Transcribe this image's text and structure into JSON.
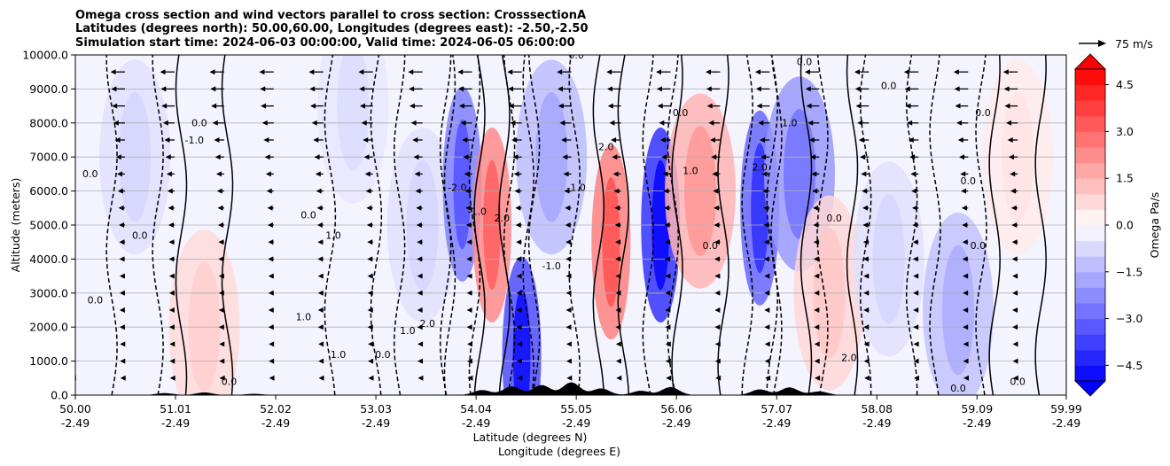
{
  "chart_data": {
    "type": "heatmap",
    "title_lines": [
      "Omega cross section and wind vectors parallel to cross section: CrosssectionA",
      "Latitudes (degrees north): 50.00,60.00, Longitudes (degrees east): -2.50,-2.50",
      "Simulation start time: 2024-06-03 00:00:00, Valid time: 2024-06-05 06:00:00"
    ],
    "xlabel_lat": "Latitude (degrees N)",
    "xlabel_lon": "Longitude (degrees E)",
    "ylabel": "Altitude (meters)",
    "x_ticks": [
      {
        "lat": "50.00",
        "lon": "-2.49",
        "value": 50.0
      },
      {
        "lat": "51.01",
        "lon": "-2.49",
        "value": 51.01
      },
      {
        "lat": "52.02",
        "lon": "-2.49",
        "value": 52.02
      },
      {
        "lat": "53.03",
        "lon": "-2.49",
        "value": 53.03
      },
      {
        "lat": "54.04",
        "lon": "-2.49",
        "value": 54.04
      },
      {
        "lat": "55.05",
        "lon": "-2.49",
        "value": 55.05
      },
      {
        "lat": "56.06",
        "lon": "-2.49",
        "value": 56.06
      },
      {
        "lat": "57.07",
        "lon": "-2.49",
        "value": 57.07
      },
      {
        "lat": "58.08",
        "lon": "-2.49",
        "value": 58.08
      },
      {
        "lat": "59.09",
        "lon": "-2.49",
        "value": 59.09
      },
      {
        "lat": "59.99",
        "lon": "-2.49",
        "value": 59.99
      }
    ],
    "xlim": [
      50.0,
      59.99
    ],
    "y_ticks": [
      {
        "label": "0.0",
        "value": 0
      },
      {
        "label": "1000.0",
        "value": 1000
      },
      {
        "label": "2000.0",
        "value": 2000
      },
      {
        "label": "3000.0",
        "value": 3000
      },
      {
        "label": "4000.0",
        "value": 4000
      },
      {
        "label": "5000.0",
        "value": 5000
      },
      {
        "label": "6000.0",
        "value": 6000
      },
      {
        "label": "7000.0",
        "value": 7000
      },
      {
        "label": "8000.0",
        "value": 8000
      },
      {
        "label": "9000.0",
        "value": 9000
      },
      {
        "label": "10000.0",
        "value": 10000
      }
    ],
    "ylim": [
      0,
      10000
    ],
    "grid": "horizontal",
    "colorbar": {
      "label": "Omega Pa/s",
      "range": [
        -5.0,
        5.0
      ],
      "levels": [
        -5.0,
        -4.5,
        -4.0,
        -3.5,
        -3.0,
        -2.5,
        -2.0,
        -1.5,
        -1.0,
        -0.5,
        0.0,
        0.5,
        1.0,
        1.5,
        2.0,
        2.5,
        3.0,
        3.5,
        4.0,
        4.5,
        5.0
      ],
      "tick_labels": [
        "4.5",
        "3.0",
        "1.5",
        "0.0",
        "−1.5",
        "−3.0",
        "−4.5"
      ],
      "tick_values": [
        4.5,
        3.0,
        1.5,
        0.0,
        -1.5,
        -3.0,
        -4.5
      ],
      "colormap": "bwr",
      "extend": "both"
    },
    "wind_key": {
      "label": "75 m/s",
      "speed": 75
    },
    "wind_rows": [
      {
        "alt": 9500,
        "speed": 30
      },
      {
        "alt": 9000,
        "speed": 28
      },
      {
        "alt": 8500,
        "speed": 26
      },
      {
        "alt": 8000,
        "speed": 22
      },
      {
        "alt": 7500,
        "speed": 18
      },
      {
        "alt": 7000,
        "speed": 15
      },
      {
        "alt": 6500,
        "speed": 12
      },
      {
        "alt": 6000,
        "speed": 10
      },
      {
        "alt": 5500,
        "speed": 8
      },
      {
        "alt": 5000,
        "speed": 7
      },
      {
        "alt": 4500,
        "speed": 6
      },
      {
        "alt": 4000,
        "speed": 6
      },
      {
        "alt": 3500,
        "speed": 5
      },
      {
        "alt": 3000,
        "speed": 5
      },
      {
        "alt": 2500,
        "speed": 5
      },
      {
        "alt": 2000,
        "speed": 5
      },
      {
        "alt": 1500,
        "speed": 4
      },
      {
        "alt": 1000,
        "speed": 4
      },
      {
        "alt": 500,
        "speed": 3
      }
    ],
    "omega_cells": [
      {
        "lat": 50.6,
        "alt": 7000,
        "value": -0.6
      },
      {
        "lat": 51.3,
        "alt": 2000,
        "value": 0.7
      },
      {
        "lat": 52.8,
        "alt": 8500,
        "value": -0.5
      },
      {
        "lat": 53.5,
        "alt": 5000,
        "value": -0.6
      },
      {
        "lat": 53.9,
        "alt": 6200,
        "value": -2.5
      },
      {
        "lat": 54.2,
        "alt": 5000,
        "value": 2.3
      },
      {
        "lat": 54.5,
        "alt": 1200,
        "value": -3.5
      },
      {
        "lat": 54.8,
        "alt": 7000,
        "value": -1.3
      },
      {
        "lat": 55.4,
        "alt": 4500,
        "value": 2.5
      },
      {
        "lat": 55.9,
        "alt": 5000,
        "value": -4.0
      },
      {
        "lat": 56.3,
        "alt": 6000,
        "value": 1.5
      },
      {
        "lat": 56.9,
        "alt": 5500,
        "value": -3.0
      },
      {
        "lat": 57.3,
        "alt": 6500,
        "value": -2.0
      },
      {
        "lat": 57.6,
        "alt": 3000,
        "value": 0.8
      },
      {
        "lat": 58.2,
        "alt": 4000,
        "value": -0.6
      },
      {
        "lat": 58.9,
        "alt": 2500,
        "value": -1.2
      },
      {
        "lat": 59.5,
        "alt": 7000,
        "value": 0.4
      }
    ],
    "contour_labels": [
      {
        "text": "0.0",
        "lat": 50.2,
        "alt": 2700
      },
      {
        "text": "0.0",
        "lat": 50.15,
        "alt": 6400
      },
      {
        "text": "0.0",
        "lat": 50.65,
        "alt": 4600
      },
      {
        "text": "-1.0",
        "lat": 51.2,
        "alt": 7400
      },
      {
        "text": "0.0",
        "lat": 51.25,
        "alt": 7900
      },
      {
        "text": "0.0",
        "lat": 51.55,
        "alt": 300
      },
      {
        "text": "1.0",
        "lat": 52.3,
        "alt": 2200
      },
      {
        "text": "0.0",
        "lat": 52.35,
        "alt": 5200
      },
      {
        "text": "1.0",
        "lat": 52.6,
        "alt": 4600
      },
      {
        "text": "1.0",
        "lat": 52.65,
        "alt": 1100
      },
      {
        "text": "0.0",
        "lat": 53.1,
        "alt": 1100
      },
      {
        "text": "1.0",
        "lat": 53.35,
        "alt": 1800
      },
      {
        "text": "2.0",
        "lat": 53.55,
        "alt": 2000
      },
      {
        "text": "-2.0",
        "lat": 53.85,
        "alt": 6000
      },
      {
        "text": "-1.0",
        "lat": 54.05,
        "alt": 5300
      },
      {
        "text": "2.0",
        "lat": 54.3,
        "alt": 5100
      },
      {
        "text": "-1.0",
        "lat": 54.8,
        "alt": 3700
      },
      {
        "text": "-1.0",
        "lat": 55.05,
        "alt": 6000
      },
      {
        "text": "2.0",
        "lat": 55.35,
        "alt": 7200
      },
      {
        "text": "0.0",
        "lat": 55.05,
        "alt": 9900
      },
      {
        "text": "0.0",
        "lat": 56.1,
        "alt": 8200
      },
      {
        "text": "1.0",
        "lat": 56.2,
        "alt": 6500
      },
      {
        "text": "0.0",
        "lat": 56.4,
        "alt": 4300
      },
      {
        "text": "2.0",
        "lat": 56.9,
        "alt": 6600
      },
      {
        "text": "0.0",
        "lat": 57.35,
        "alt": 9700
      },
      {
        "text": "1.0",
        "lat": 57.2,
        "alt": 7900
      },
      {
        "text": "2.0",
        "lat": 57.8,
        "alt": 1000
      },
      {
        "text": "0.0",
        "lat": 57.65,
        "alt": 5100
      },
      {
        "text": "0.0",
        "lat": 58.2,
        "alt": 9000
      },
      {
        "text": "0.0",
        "lat": 59.1,
        "alt": 4300
      },
      {
        "text": "0.0",
        "lat": 59.15,
        "alt": 8200
      },
      {
        "text": "0.0",
        "lat": 59.0,
        "alt": 6200
      },
      {
        "text": "0.0",
        "lat": 59.5,
        "alt": 300
      },
      {
        "text": "0.0",
        "lat": 58.9,
        "alt": 100
      }
    ]
  }
}
